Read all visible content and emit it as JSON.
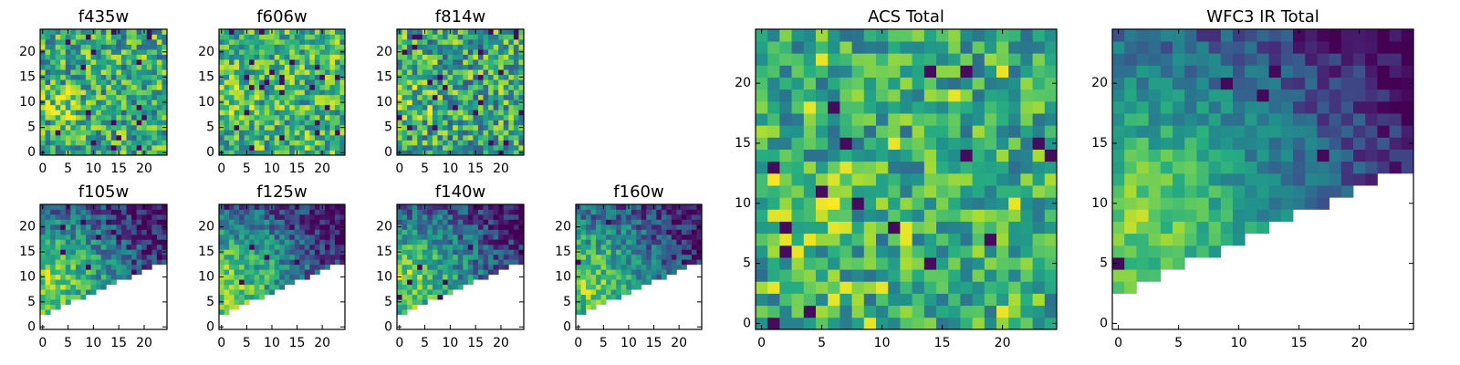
{
  "figure": {
    "colormap": "viridis",
    "value_range": [
      0,
      1
    ],
    "masked_color": "#ffffff"
  },
  "chart_data": [
    {
      "type": "heatmap",
      "title": "f435w",
      "grid": [
        25,
        25
      ],
      "xlim": [
        0,
        24
      ],
      "ylim": [
        0,
        24
      ],
      "xticks": [
        0,
        5,
        10,
        15,
        20
      ],
      "yticks": [
        0,
        5,
        10,
        15,
        20
      ],
      "mask": "none",
      "pattern": "noise",
      "base": 0.62,
      "spread": 0.32,
      "seed": 11
    },
    {
      "type": "heatmap",
      "title": "f606w",
      "grid": [
        25,
        25
      ],
      "xlim": [
        0,
        24
      ],
      "ylim": [
        0,
        24
      ],
      "xticks": [
        0,
        5,
        10,
        15,
        20
      ],
      "yticks": [
        0,
        5,
        10,
        15,
        20
      ],
      "mask": "none",
      "pattern": "noise",
      "base": 0.66,
      "spread": 0.3,
      "seed": 23
    },
    {
      "type": "heatmap",
      "title": "f814w",
      "grid": [
        25,
        25
      ],
      "xlim": [
        0,
        24
      ],
      "ylim": [
        0,
        24
      ],
      "xticks": [
        0,
        5,
        10,
        15,
        20
      ],
      "yticks": [
        0,
        5,
        10,
        15,
        20
      ],
      "mask": "none",
      "pattern": "noise",
      "base": 0.6,
      "spread": 0.34,
      "seed": 37
    },
    {
      "type": "heatmap",
      "title": "f105w",
      "grid": [
        25,
        25
      ],
      "xlim": [
        0,
        24
      ],
      "ylim": [
        0,
        24
      ],
      "xticks": [
        0,
        5,
        10,
        15,
        20
      ],
      "yticks": [
        0,
        5,
        10,
        15,
        20
      ],
      "mask": "triangle",
      "pattern": "gradient",
      "base": 0.55,
      "spread": 0.22,
      "seed": 41
    },
    {
      "type": "heatmap",
      "title": "f125w",
      "grid": [
        25,
        25
      ],
      "xlim": [
        0,
        24
      ],
      "ylim": [
        0,
        24
      ],
      "xticks": [
        0,
        5,
        10,
        15,
        20
      ],
      "yticks": [
        0,
        5,
        10,
        15,
        20
      ],
      "mask": "triangle",
      "pattern": "gradient",
      "base": 0.56,
      "spread": 0.22,
      "seed": 53
    },
    {
      "type": "heatmap",
      "title": "f140w",
      "grid": [
        25,
        25
      ],
      "xlim": [
        0,
        24
      ],
      "ylim": [
        0,
        24
      ],
      "xticks": [
        0,
        5,
        10,
        15,
        20
      ],
      "yticks": [
        0,
        5,
        10,
        15,
        20
      ],
      "mask": "triangle",
      "pattern": "gradient",
      "base": 0.56,
      "spread": 0.22,
      "seed": 67
    },
    {
      "type": "heatmap",
      "title": "f160w",
      "grid": [
        25,
        25
      ],
      "xlim": [
        0,
        24
      ],
      "ylim": [
        0,
        24
      ],
      "xticks": [
        0,
        5,
        10,
        15,
        20
      ],
      "yticks": [
        0,
        5,
        10,
        15,
        20
      ],
      "mask": "triangle",
      "pattern": "gradient",
      "base": 0.5,
      "spread": 0.22,
      "seed": 79
    },
    {
      "type": "heatmap",
      "title": "ACS Total",
      "grid": [
        25,
        25
      ],
      "xlim": [
        0,
        24
      ],
      "ylim": [
        0,
        24
      ],
      "xticks": [
        0,
        5,
        10,
        15,
        20
      ],
      "yticks": [
        0,
        5,
        10,
        15,
        20
      ],
      "mask": "none",
      "pattern": "noise-hot",
      "base": 0.62,
      "spread": 0.26,
      "seed": 97
    },
    {
      "type": "heatmap",
      "title": "WFC3 IR Total",
      "grid": [
        25,
        25
      ],
      "xlim": [
        0,
        24
      ],
      "ylim": [
        0,
        24
      ],
      "xticks": [
        0,
        5,
        10,
        15,
        20
      ],
      "yticks": [
        0,
        5,
        10,
        15,
        20
      ],
      "mask": "triangle",
      "pattern": "gradient",
      "base": 0.5,
      "spread": 0.14,
      "seed": 113
    }
  ]
}
